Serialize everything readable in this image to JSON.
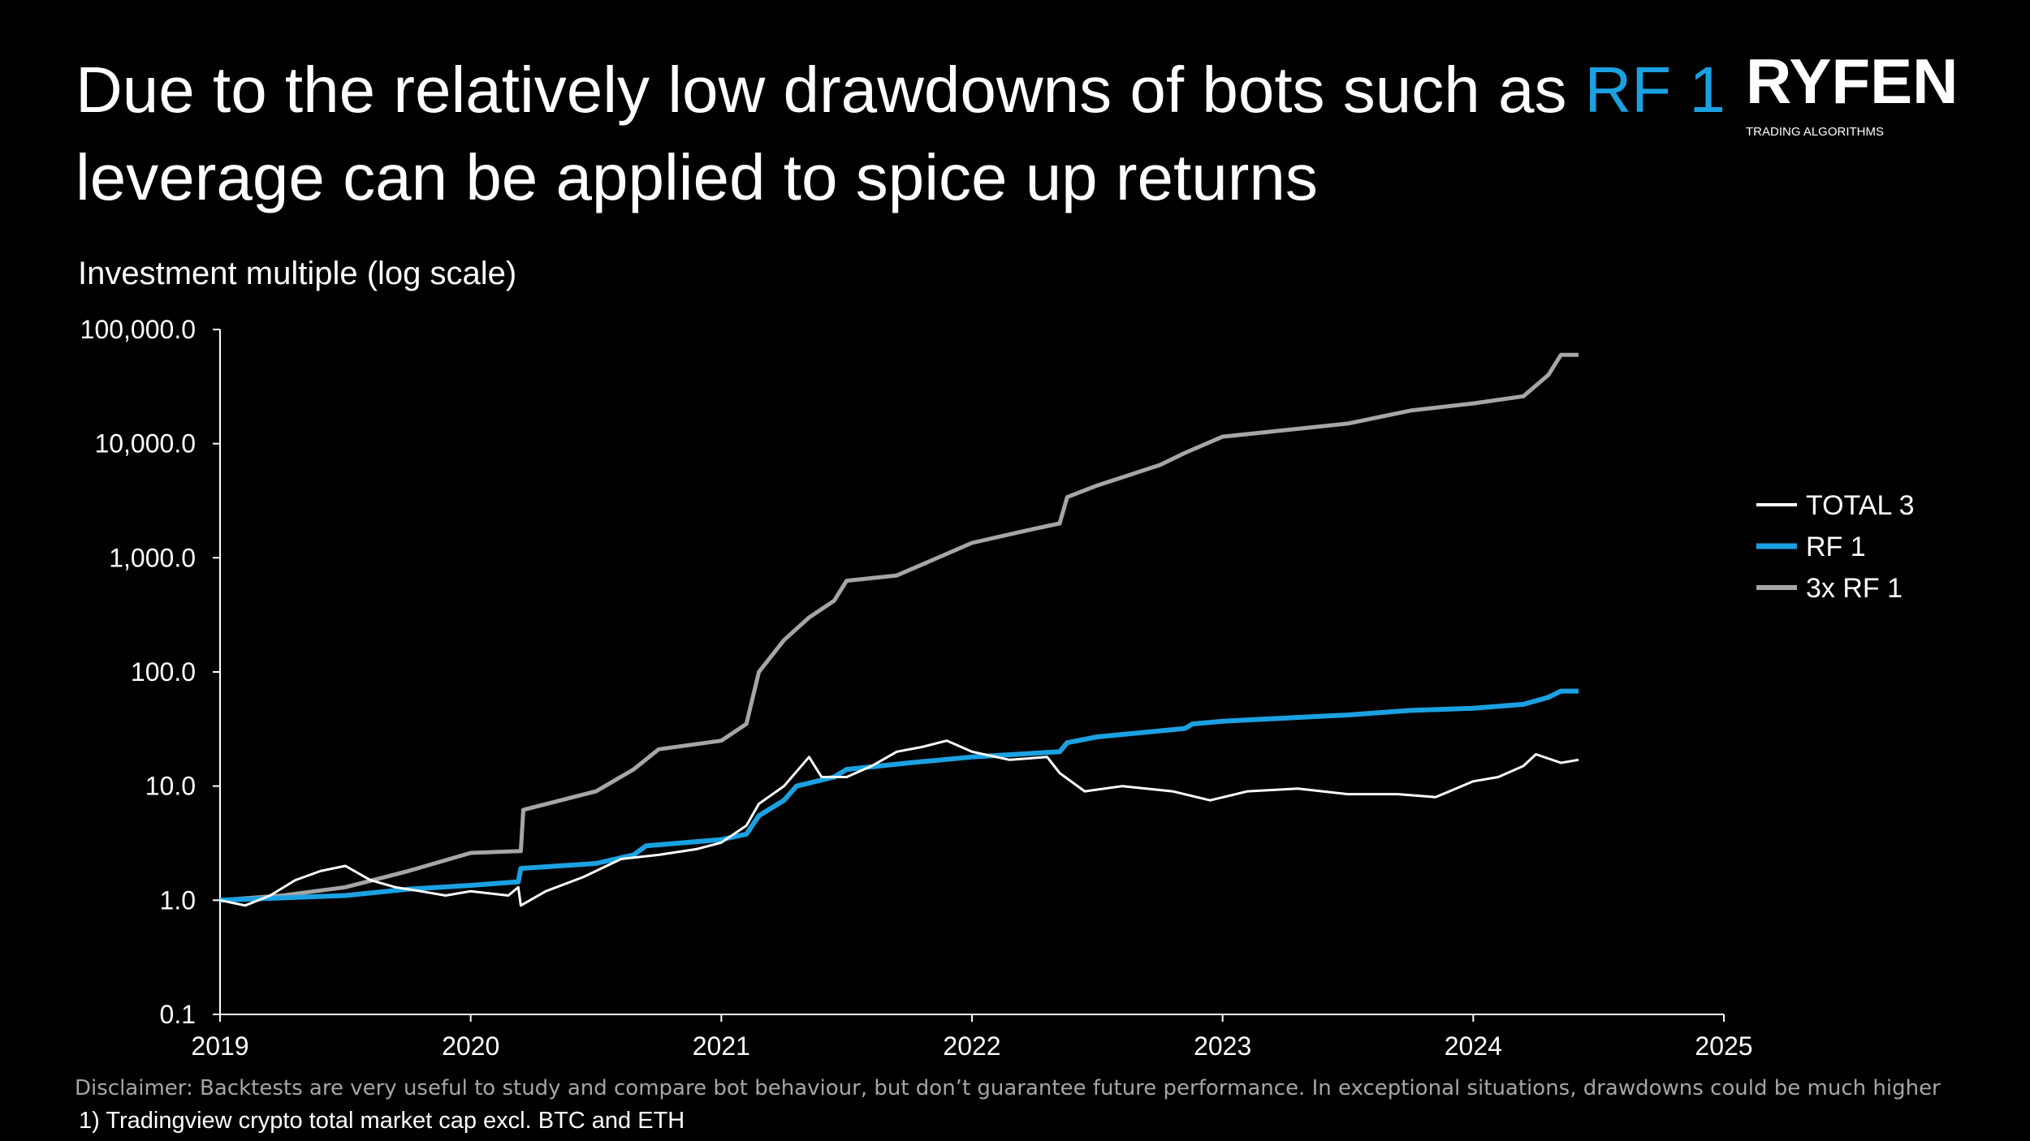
{
  "logo": {
    "name": "RYFEN",
    "tagline": "TRADING ALGORITHMS"
  },
  "chart_data": {
    "type": "line",
    "title_parts": [
      "Due to the relatively low drawdowns of bots such as",
      "RF 1",
      "leverage can be applied to spice up returns"
    ],
    "y_label": "Investment multiple (log scale)",
    "log_scale": true,
    "xlim": [
      2019,
      2025
    ],
    "xticks": [
      2019,
      2020,
      2021,
      2022,
      2023,
      2024,
      2025
    ],
    "ylim": [
      0.1,
      100000
    ],
    "yticks": [
      0.1,
      {
        "value": 1,
        "label": "1.0"
      },
      {
        "value": 10,
        "label": "10.0"
      },
      {
        "value": 100,
        "label": "100.0"
      },
      {
        "value": 1000,
        "label": "1,000.0"
      },
      {
        "value": 10000,
        "label": "10,000.0"
      },
      {
        "value": 100000,
        "label": "100,000.0"
      }
    ],
    "legend": "right",
    "series": [
      {
        "name": "TOTAL 3",
        "color": "#ffffff",
        "x": [
          2019,
          2019.1,
          2019.2,
          2019.3,
          2019.4,
          2019.5,
          2019.6,
          2019.7,
          2019.8,
          2019.9,
          2020,
          2020.15,
          2020.19,
          2020.2,
          2020.3,
          2020.45,
          2020.6,
          2020.75,
          2020.9,
          2021,
          2021.1,
          2021.15,
          2021.25,
          2021.35,
          2021.4,
          2021.5,
          2021.6,
          2021.7,
          2021.8,
          2021.9,
          2022,
          2022.15,
          2022.3,
          2022.35,
          2022.45,
          2022.6,
          2022.8,
          2022.95,
          2023.1,
          2023.3,
          2023.5,
          2023.7,
          2023.85,
          2024,
          2024.1,
          2024.2,
          2024.25,
          2024.35,
          2024.42
        ],
        "values": [
          1.0,
          0.9,
          1.1,
          1.5,
          1.8,
          2.0,
          1.5,
          1.3,
          1.2,
          1.1,
          1.2,
          1.1,
          1.3,
          0.9,
          1.2,
          1.6,
          2.3,
          2.5,
          2.8,
          3.2,
          4.5,
          7,
          10,
          18,
          12,
          12,
          15,
          20,
          22,
          25,
          20,
          17,
          18,
          13,
          9,
          10,
          9,
          7.5,
          9,
          9.5,
          8.5,
          8.5,
          8,
          11,
          12,
          15,
          19,
          16,
          17
        ]
      },
      {
        "name": "RF 1",
        "color": "#1ba1e2",
        "x": [
          2019,
          2019.5,
          2019.75,
          2020,
          2020.19,
          2020.2,
          2020.5,
          2020.65,
          2020.7,
          2021,
          2021.1,
          2021.15,
          2021.25,
          2021.3,
          2021.45,
          2021.5,
          2021.75,
          2022,
          2022.35,
          2022.38,
          2022.5,
          2022.85,
          2022.88,
          2023,
          2023.5,
          2023.75,
          2024,
          2024.2,
          2024.3,
          2024.35,
          2024.42
        ],
        "values": [
          1.0,
          1.1,
          1.25,
          1.35,
          1.45,
          1.9,
          2.1,
          2.5,
          3.0,
          3.4,
          3.8,
          5.5,
          7.5,
          10,
          12,
          14,
          16,
          18,
          20,
          24,
          27,
          32,
          35,
          37,
          42,
          46,
          48,
          52,
          60,
          68,
          68
        ]
      },
      {
        "name": "3x RF 1",
        "color": "#a6a6a6",
        "x": [
          2019,
          2019.25,
          2019.5,
          2019.75,
          2020,
          2020.2,
          2020.21,
          2020.5,
          2020.65,
          2020.75,
          2021,
          2021.1,
          2021.15,
          2021.25,
          2021.35,
          2021.45,
          2021.5,
          2021.7,
          2021.8,
          2022,
          2022.2,
          2022.35,
          2022.38,
          2022.5,
          2022.75,
          2022.85,
          2023,
          2023.5,
          2023.75,
          2024,
          2024.2,
          2024.3,
          2024.35,
          2024.42
        ],
        "values": [
          1.0,
          1.1,
          1.3,
          1.8,
          2.6,
          2.7,
          6.2,
          9,
          14,
          21,
          25,
          35,
          100,
          190,
          300,
          420,
          630,
          700,
          870,
          1350,
          1700,
          2000,
          3400,
          4300,
          6500,
          8300,
          11500,
          15000,
          19500,
          22500,
          26000,
          40000,
          60000,
          60000
        ]
      }
    ],
    "disclaimer": "Disclaimer: Backtests are very useful to study and compare bot behaviour, but don’t guarantee future performance. In exceptional situations, drawdowns could be much higher",
    "footnote": "1) Tradingview crypto total market cap excl. BTC and ETH"
  }
}
